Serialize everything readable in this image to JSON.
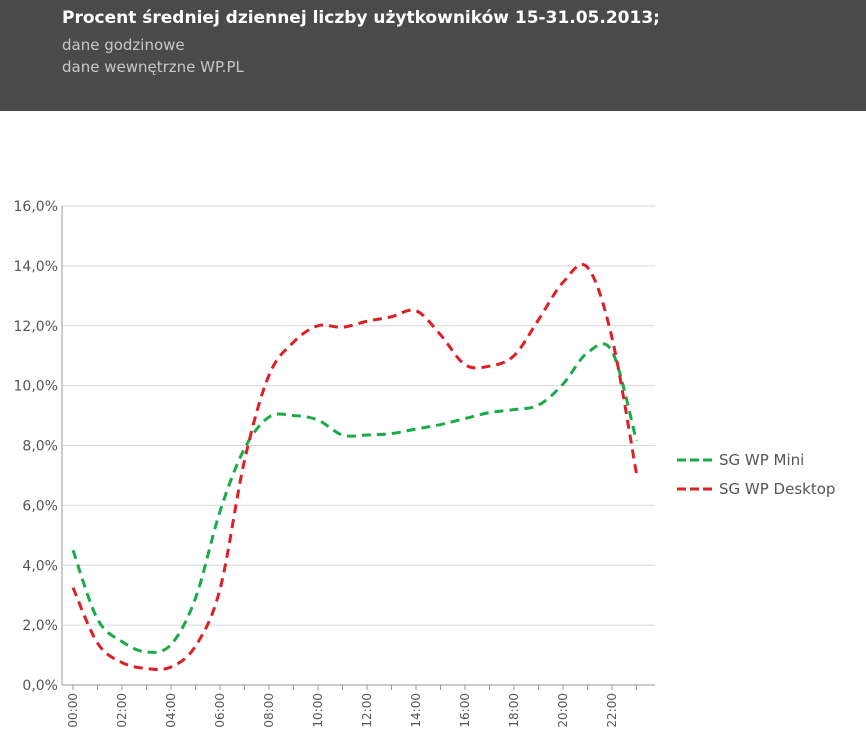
{
  "header": {
    "title": "Procent średniej dziennej liczby użytkowników 15-31.05.2013;",
    "subtitle1": "dane godzinowe",
    "subtitle2": "dane wewnętrzne WP.PL",
    "background": "#4a4a4a"
  },
  "chart_data": {
    "type": "line",
    "x": [
      "00:00",
      "01:00",
      "02:00",
      "03:00",
      "04:00",
      "05:00",
      "06:00",
      "07:00",
      "08:00",
      "09:00",
      "10:00",
      "11:00",
      "12:00",
      "13:00",
      "14:00",
      "15:00",
      "16:00",
      "17:00",
      "18:00",
      "19:00",
      "20:00",
      "21:00",
      "22:00",
      "23:00"
    ],
    "x_tick_labels": [
      "00:00",
      "02:00",
      "04:00",
      "06:00",
      "08:00",
      "10:00",
      "12:00",
      "14:00",
      "16:00",
      "18:00",
      "20:00",
      "22:00"
    ],
    "ylim": [
      0,
      16
    ],
    "y_ticks": [
      0,
      2,
      4,
      6,
      8,
      10,
      12,
      14,
      16
    ],
    "y_tick_labels": [
      "0,0%",
      "2,0%",
      "4,0%",
      "6,0%",
      "8,0%",
      "10,0%",
      "12,0%",
      "14,0%",
      "16,0%"
    ],
    "grid": true,
    "legend_position": "right",
    "series": [
      {
        "name": "SG WP Mini",
        "color": "#1aaa4a",
        "values": [
          4.5,
          2.2,
          1.45,
          1.1,
          1.35,
          2.9,
          5.8,
          7.9,
          8.95,
          9.0,
          8.85,
          8.35,
          8.35,
          8.4,
          8.55,
          8.7,
          8.9,
          9.1,
          9.2,
          9.35,
          10.05,
          11.1,
          11.15,
          8.15
        ]
      },
      {
        "name": "SG WP Desktop",
        "color": "#dd1f26",
        "values": [
          3.25,
          1.4,
          0.75,
          0.55,
          0.6,
          1.3,
          3.2,
          7.5,
          10.35,
          11.45,
          12.0,
          11.95,
          12.15,
          12.3,
          12.5,
          11.7,
          10.7,
          10.65,
          11.0,
          12.2,
          13.45,
          13.95,
          11.6,
          7.05
        ]
      }
    ]
  }
}
